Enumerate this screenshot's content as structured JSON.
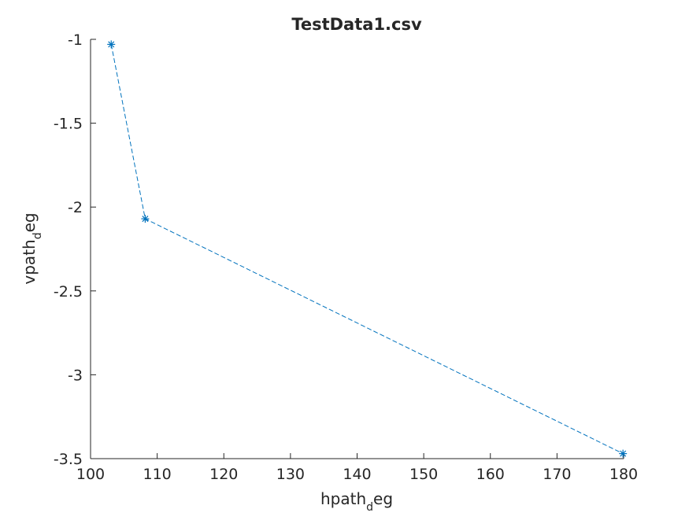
{
  "chart_data": {
    "type": "line",
    "title": "TestData1.csv",
    "xlabel": {
      "main": "hpath",
      "sub": "d",
      "tail": "eg"
    },
    "ylabel": {
      "main": "vpath",
      "sub": "d",
      "tail": "eg"
    },
    "xlim": [
      100,
      180
    ],
    "ylim": [
      -3.5,
      -1
    ],
    "xticks": [
      100,
      110,
      120,
      130,
      140,
      150,
      160,
      170,
      180
    ],
    "yticks": [
      -1,
      -1.5,
      -2,
      -2.5,
      -3,
      -3.5
    ],
    "xtick_labels": [
      "100",
      "110",
      "120",
      "130",
      "140",
      "150",
      "160",
      "170",
      "180"
    ],
    "ytick_labels": [
      "-1",
      "-1.5",
      "-2",
      "-2.5",
      "-3",
      "-3.5"
    ],
    "grid": false,
    "series": [
      {
        "x": [
          103.1,
          108.2,
          179.9
        ],
        "y": [
          -1.03,
          -2.07,
          -3.47
        ],
        "color": "#0072BD",
        "line_style": "dashed",
        "marker": "asterisk"
      }
    ]
  }
}
